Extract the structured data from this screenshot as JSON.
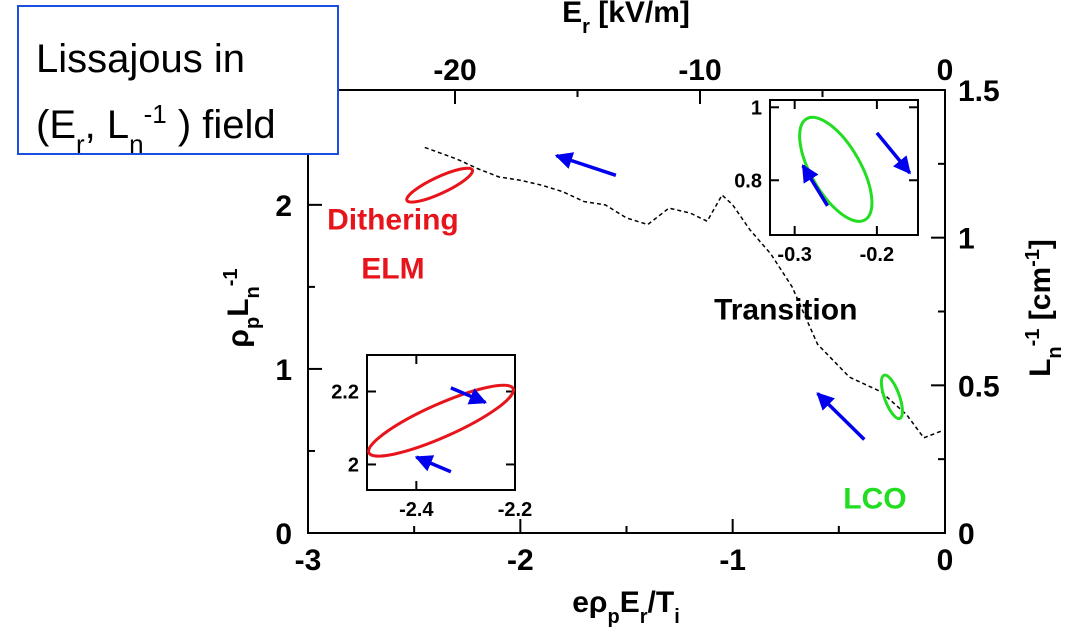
{
  "chart_data": {
    "type": "line",
    "main": {
      "xlabel": "eρ_p E_r/T_i",
      "ylabel": "ρ_p L_n^-1",
      "xlim": [
        -3,
        0
      ],
      "ylim": [
        0,
        2.7
      ],
      "x_ticks": [
        "-3",
        "-2",
        "-1",
        "0"
      ],
      "y_ticks": [
        "0",
        "1",
        "2"
      ],
      "top_axis": {
        "label": "E_r [kV/m]",
        "range": [
          -26,
          0
        ],
        "ticks": [
          -20,
          -10,
          0
        ],
        "tick_labels": [
          "-20",
          "-10",
          "0"
        ]
      },
      "right_axis": {
        "label": "L_n^-1 [cm^-1]",
        "range": [
          0,
          1.5
        ],
        "ticks": [
          0,
          0.5,
          1,
          1.5
        ],
        "tick_labels": [
          "0",
          "0.5",
          "1",
          "1.5"
        ]
      },
      "series": [
        {
          "name": "Transition",
          "style": "dashed",
          "color": "#000000",
          "x": [
            -0.02,
            -0.1,
            -0.18,
            -0.3,
            -0.45,
            -0.6,
            -0.72,
            -0.82,
            -0.92,
            -1.0,
            -1.05,
            -1.12,
            -1.2,
            -1.3,
            -1.4,
            -1.5,
            -1.6,
            -1.7,
            -1.8,
            -1.9,
            -2.0,
            -2.1,
            -2.2,
            -2.3,
            -2.45
          ],
          "y": [
            0.62,
            0.58,
            0.72,
            0.86,
            0.95,
            1.15,
            1.5,
            1.7,
            1.85,
            2.0,
            2.06,
            1.9,
            1.95,
            1.98,
            1.88,
            1.92,
            2.0,
            2.02,
            2.08,
            2.12,
            2.15,
            2.17,
            2.22,
            2.28,
            2.35
          ]
        },
        {
          "name": "Dithering ELM",
          "type": "ellipse",
          "color": "#e8141c",
          "center": [
            -2.38,
            2.12
          ],
          "radius_x": 0.17,
          "radius_y": 0.05,
          "rotation_deg": -25
        },
        {
          "name": "LCO",
          "type": "ellipse",
          "color": "#22dd22",
          "center": [
            -0.25,
            0.83
          ],
          "radius_x": 0.035,
          "radius_y": 0.14,
          "rotation_deg": -20
        }
      ],
      "arrows": [
        {
          "from": [
            -1.55,
            2.18
          ],
          "to": [
            -1.83,
            2.3
          ],
          "color": "#0000ee"
        },
        {
          "from": [
            -0.38,
            0.57
          ],
          "to": [
            -0.6,
            0.85
          ],
          "color": "#0000ee"
        }
      ],
      "annotations": [
        {
          "text": "Dithering",
          "color": "#e8141c",
          "x": -2.6,
          "y": 1.85
        },
        {
          "text": "ELM",
          "color": "#e8141c",
          "x": -2.6,
          "y": 1.55
        },
        {
          "text": "Transition",
          "color": "#000000",
          "x": -0.75,
          "y": 1.3
        },
        {
          "text": "LCO",
          "color": "#22dd22",
          "x": -0.33,
          "y": 0.15
        }
      ]
    },
    "inset_dithering": {
      "xlim": [
        -2.5,
        -2.2
      ],
      "ylim": [
        1.93,
        2.3
      ],
      "x_ticks": [
        "-2.4",
        "-2.2"
      ],
      "y_ticks": [
        "2",
        "2.2"
      ],
      "ellipse": {
        "center": [
          -2.35,
          2.12
        ],
        "radius_x": 0.16,
        "radius_y": 0.045,
        "rotation_deg": -24,
        "color": "#e8141c"
      },
      "arrows": [
        {
          "from": [
            -2.33,
            2.21
          ],
          "to": [
            -2.26,
            2.17
          ],
          "color": "#0000ee"
        },
        {
          "from": [
            -2.33,
            1.98
          ],
          "to": [
            -2.4,
            2.02
          ],
          "color": "#0000ee"
        }
      ]
    },
    "inset_lco": {
      "xlim": [
        -0.33,
        -0.15
      ],
      "ylim": [
        0.65,
        1.02
      ],
      "x_ticks": [
        "-0.3",
        "-0.2"
      ],
      "y_ticks": [
        "0.8",
        "1"
      ],
      "ellipse": {
        "center": [
          -0.25,
          0.83
        ],
        "radius_x": 0.03,
        "radius_y": 0.16,
        "rotation_deg": -30,
        "color": "#22dd22"
      },
      "arrows": [
        {
          "from": [
            -0.2,
            0.93
          ],
          "to": [
            -0.16,
            0.82
          ],
          "color": "#0000ee"
        },
        {
          "from": [
            -0.26,
            0.73
          ],
          "to": [
            -0.29,
            0.84
          ],
          "color": "#0000ee"
        }
      ]
    }
  },
  "text_box": {
    "line1": "Lissajous in",
    "line2_prefix": "(E",
    "line2_sub1": "r",
    "line2_mid": ", L",
    "line2_sub2": "n",
    "line2_sup": "-1",
    "line2_suffix": " ) field",
    "border_color": "#1a4fe0"
  },
  "colors": {
    "red": "#e8141c",
    "green": "#22dd22",
    "blue": "#0000ee",
    "black": "#000000"
  }
}
